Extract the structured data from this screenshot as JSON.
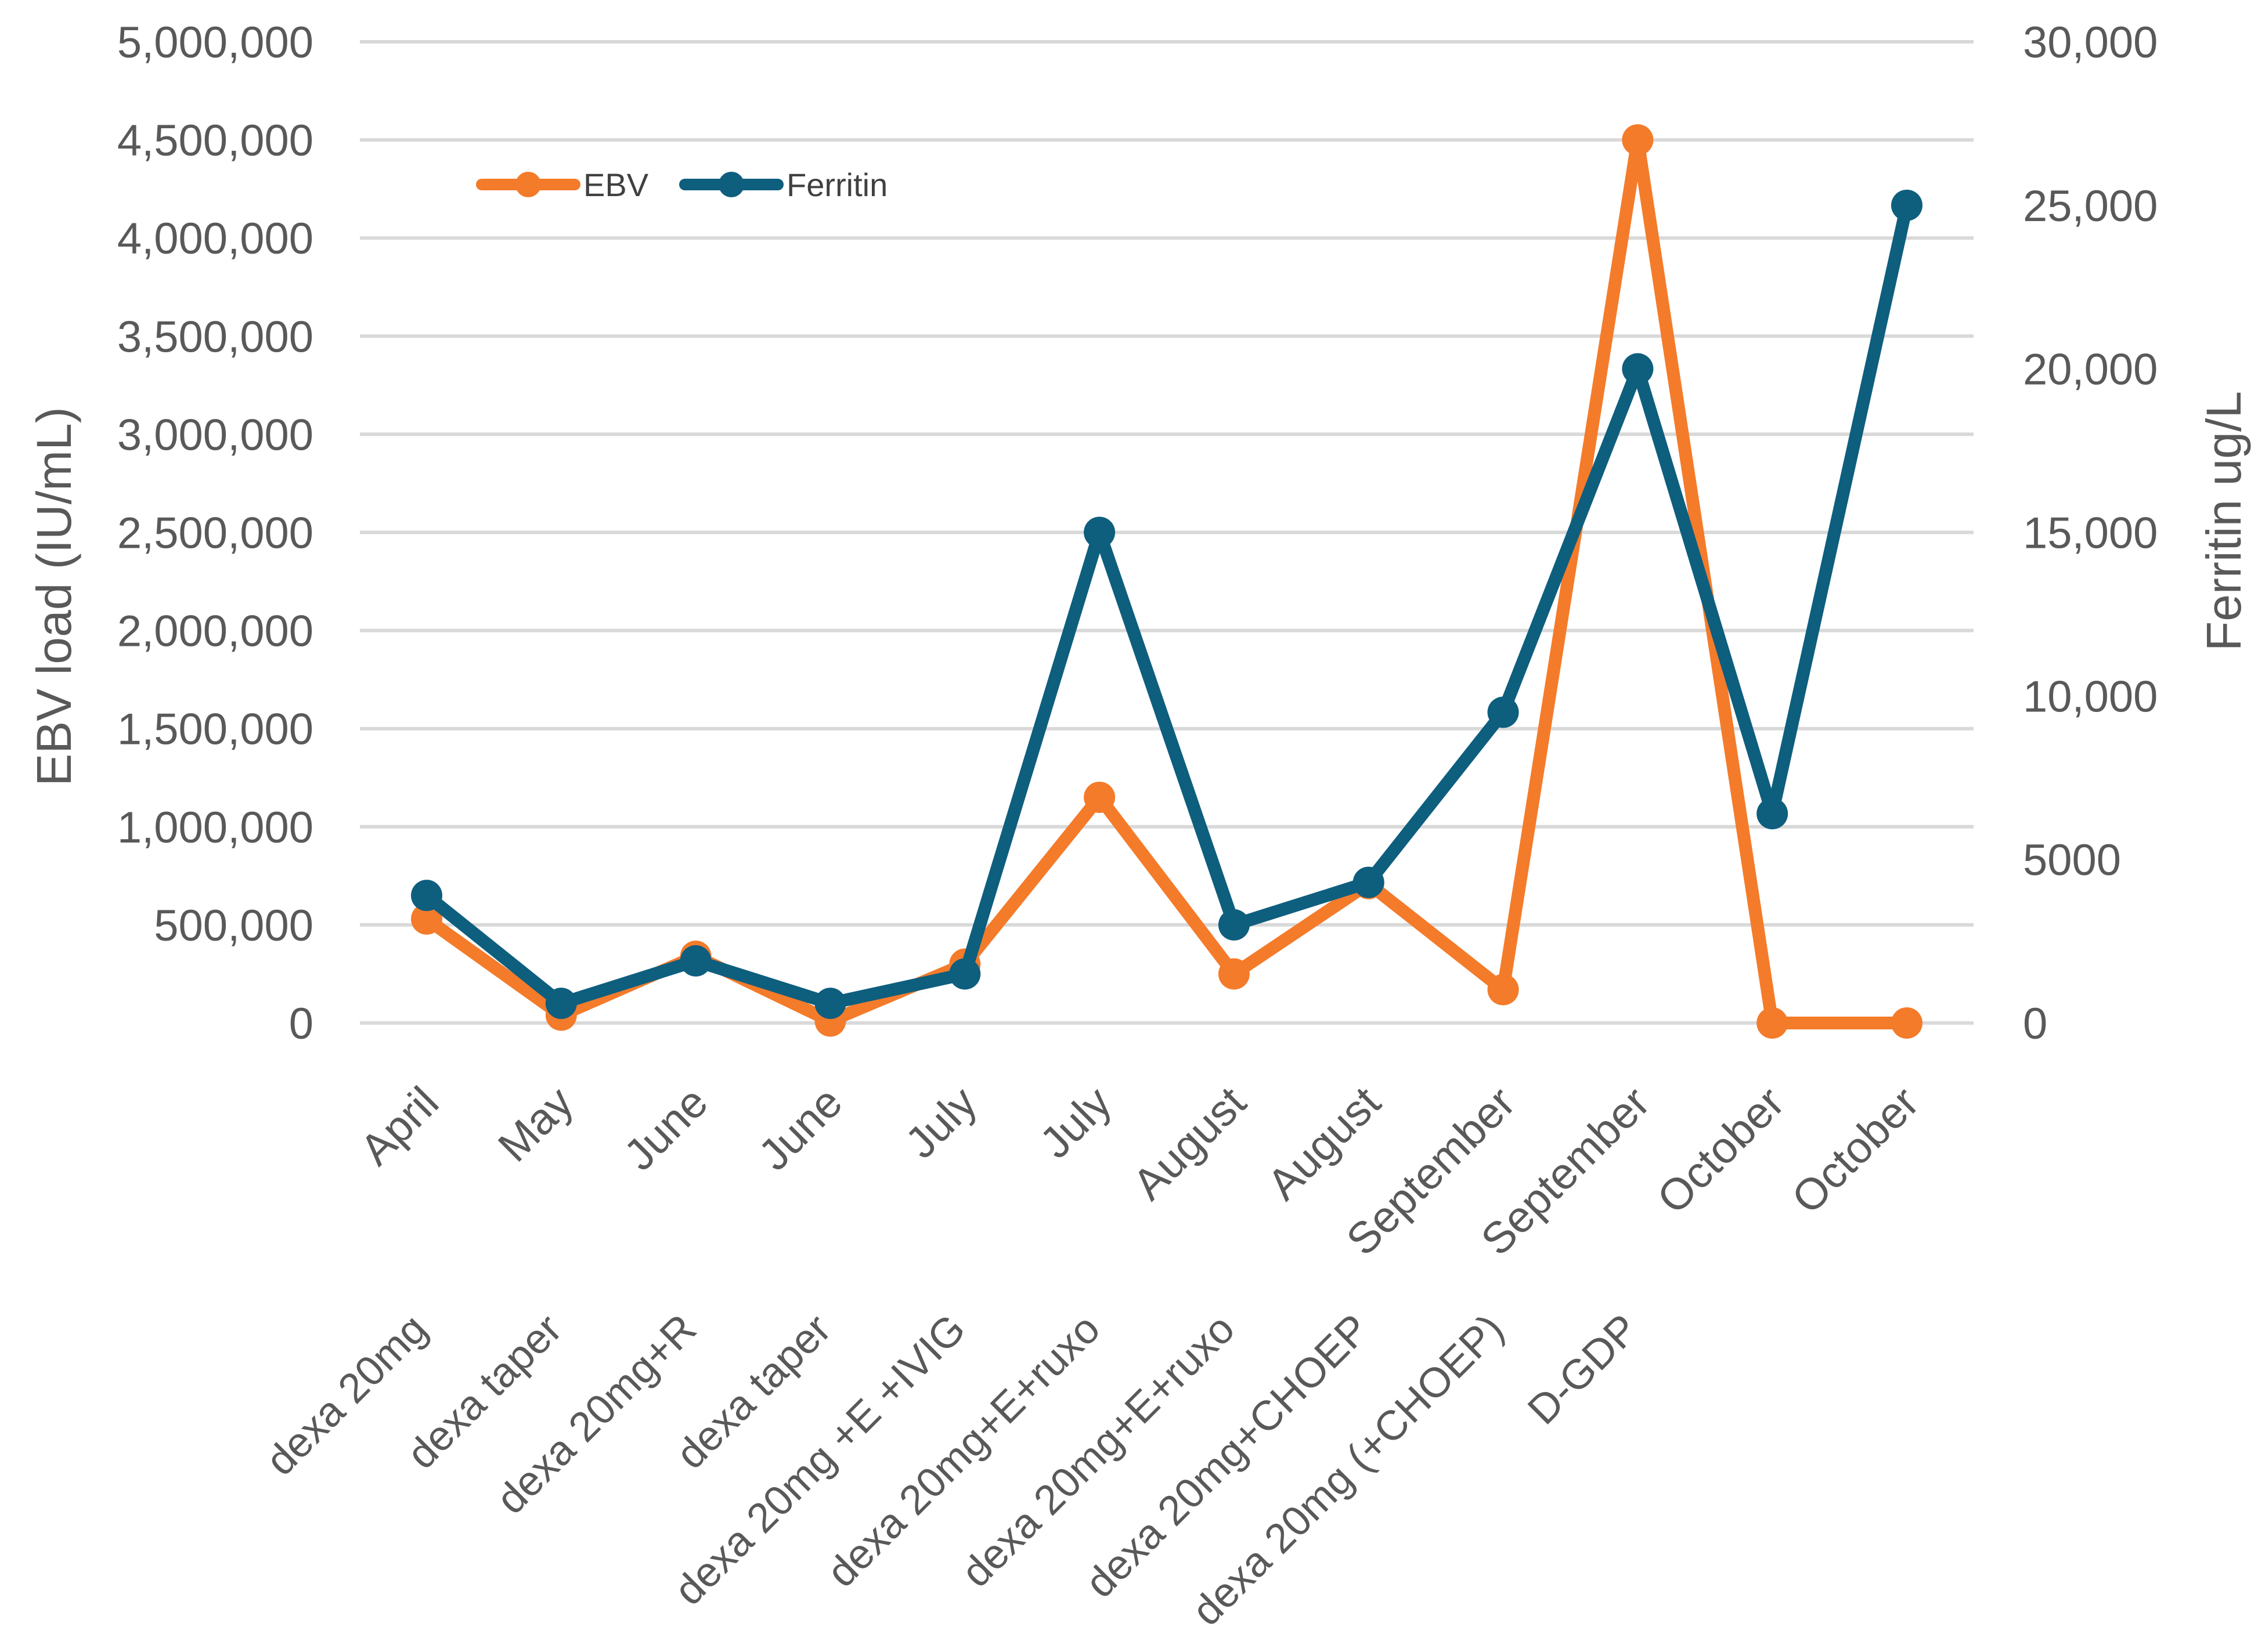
{
  "chart_data": {
    "type": "line",
    "title": "",
    "categories": [
      "April",
      "May",
      "June",
      "June",
      "July",
      "July",
      "August",
      "August",
      "September",
      "September",
      "October",
      "October"
    ],
    "treatments": [
      "dexa 20mg",
      "dexa taper",
      "dexa 20mg+R",
      "dexa taper",
      "dexa 20mg +E +IVIG",
      "dexa 20mg+E+ruxo",
      "dexa 20mg+E+ruxo",
      "dexa 20mg+CHOEP",
      "dexa 20mg (+CHOEP)",
      "D-GDP"
    ],
    "xlabel": "",
    "ylabel": "EBV load (IU/mL)",
    "y2label": "Ferritin ug/L",
    "ylim": [
      0,
      5000000
    ],
    "y2lim": [
      0,
      30000
    ],
    "yticks": [
      "0",
      "500,000",
      "1,000,000",
      "1,500,000",
      "2,000,000",
      "2,500,000",
      "3,000,000",
      "3,500,000",
      "4,000,000",
      "4,500,000",
      "5,000,000"
    ],
    "y2ticks": [
      "0",
      "5000",
      "10,000",
      "15,000",
      "20,000",
      "25,000",
      "30,000"
    ],
    "grid": true,
    "legend": "top-left",
    "series": [
      {
        "name": "EBV",
        "axis": "left",
        "color": "#F47B2A",
        "values": [
          530000,
          40000,
          340000,
          10000,
          300000,
          1150000,
          250000,
          710000,
          170000,
          4500000,
          0,
          0
        ]
      },
      {
        "name": "Ferritin",
        "axis": "right",
        "color": "#0E5E7E",
        "values": [
          3900,
          600,
          1900,
          600,
          1500,
          15000,
          3000,
          4300,
          9500,
          20000,
          6400,
          25000
        ]
      }
    ]
  }
}
